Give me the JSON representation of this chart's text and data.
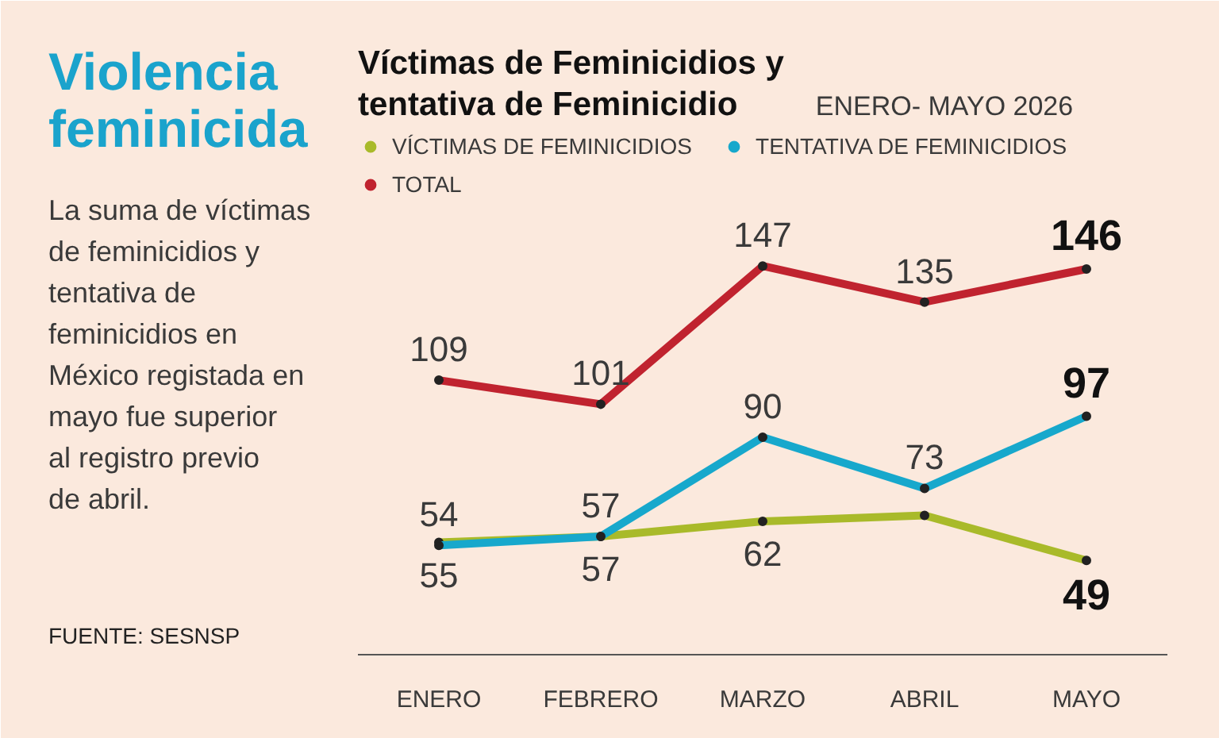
{
  "chart_data": {
    "type": "line",
    "title": "Violencia feminicida",
    "subtitle": "Víctimas de Feminicidios y tentativa de Feminicidio",
    "annotations": [
      "ENERO- MAYO 2026",
      "La suma de víctimas de feminicidios y tentativa de feminicidios en México registada en mayo fue superior al registro previo de abril.",
      "FUENTE: SESNSP"
    ],
    "categories": [
      "ENERO",
      "FEBRERO",
      "MARZO",
      "ABRIL",
      "MAYO"
    ],
    "series": [
      {
        "name": "VÍCTIMAS DE FEMINICIDIOS",
        "color": "#a9ba2a",
        "values": [
          55,
          57,
          62,
          64,
          49
        ],
        "value_labels": [
          "55",
          "57",
          "62",
          null,
          "49"
        ]
      },
      {
        "name": "TENTATIVA DE FEMINICIDIOS",
        "color": "#17a8cc",
        "values": [
          54,
          57,
          90,
          73,
          97
        ],
        "value_labels": [
          "54",
          "57",
          "90",
          "73",
          "97"
        ]
      },
      {
        "name": "TOTAL",
        "color": "#c0232f",
        "values": [
          109,
          101,
          147,
          135,
          146
        ],
        "value_labels": [
          "109",
          "101",
          "147",
          "135",
          "146"
        ]
      }
    ],
    "legend": "top",
    "marker": "circle",
    "line_style": "solid"
  }
}
